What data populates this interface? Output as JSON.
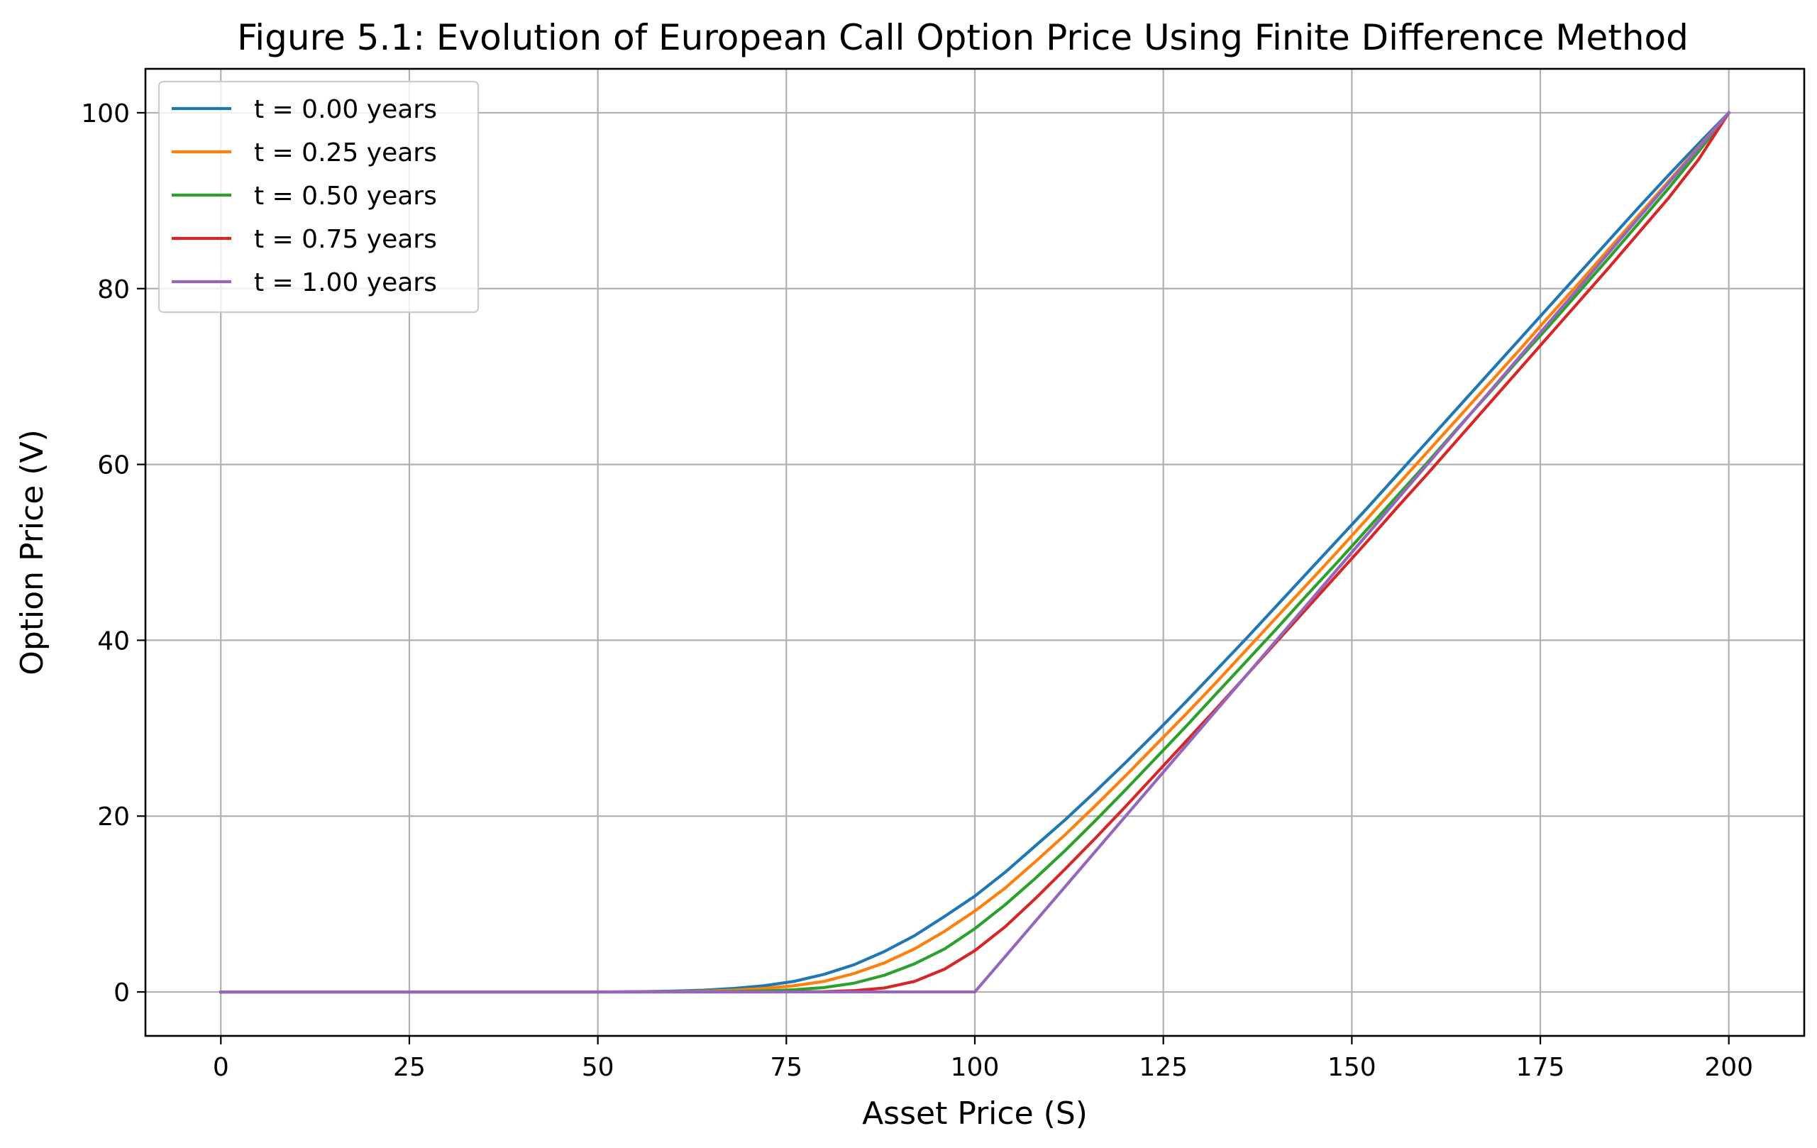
{
  "chart_data": {
    "type": "line",
    "title": "Figure 5.1: Evolution of European Call Option Price Using Finite Difference Method",
    "xlabel": "Asset Price (S)",
    "ylabel": "Option Price (V)",
    "xlim": [
      -10,
      210
    ],
    "ylim": [
      -5,
      105
    ],
    "xticks": [
      0,
      25,
      50,
      75,
      100,
      125,
      150,
      175,
      200
    ],
    "xtick_labels": [
      "0",
      "25",
      "50",
      "75",
      "100",
      "125",
      "150",
      "175",
      "200"
    ],
    "yticks": [
      0,
      20,
      40,
      60,
      80,
      100
    ],
    "ytick_labels": [
      "0",
      "20",
      "40",
      "60",
      "80",
      "100"
    ],
    "grid": true,
    "legend_position": "upper-left",
    "x": [
      0,
      4,
      8,
      12,
      16,
      20,
      24,
      28,
      32,
      36,
      40,
      44,
      48,
      52,
      56,
      60,
      64,
      68,
      72,
      76,
      80,
      84,
      88,
      92,
      96,
      100,
      104,
      108,
      112,
      116,
      120,
      124,
      128,
      132,
      136,
      140,
      144,
      148,
      152,
      156,
      160,
      164,
      168,
      172,
      176,
      180,
      184,
      188,
      192,
      196,
      200
    ],
    "series": [
      {
        "name": "t = 0.00 years",
        "color": "#1f77b4",
        "values": [
          0,
          0,
          0,
          0,
          0,
          0,
          0,
          0,
          0,
          0,
          0,
          0,
          0,
          0.01,
          0.04,
          0.1,
          0.2,
          0.4,
          0.7,
          1.2,
          2.0,
          3.1,
          4.6,
          6.4,
          8.6,
          10.9,
          13.6,
          16.6,
          19.6,
          22.8,
          26.1,
          29.5,
          33.0,
          36.6,
          40.2,
          43.9,
          47.6,
          51.3,
          55.0,
          58.8,
          62.6,
          66.4,
          70.2,
          74.0,
          77.8,
          81.6,
          85.4,
          89.2,
          92.9,
          96.5,
          100
        ]
      },
      {
        "name": "t = 0.25 years",
        "color": "#ff7f0e",
        "values": [
          0,
          0,
          0,
          0,
          0,
          0,
          0,
          0,
          0,
          0,
          0,
          0,
          0,
          0,
          0.01,
          0.03,
          0.08,
          0.2,
          0.4,
          0.7,
          1.2,
          2.1,
          3.3,
          4.9,
          6.9,
          9.2,
          11.8,
          14.8,
          17.9,
          21.2,
          24.6,
          28.1,
          31.6,
          35.2,
          38.9,
          42.6,
          46.3,
          50.0,
          53.8,
          57.6,
          61.4,
          65.2,
          69.0,
          72.8,
          76.7,
          80.5,
          84.4,
          88.3,
          92.2,
          96.1,
          100
        ]
      },
      {
        "name": "t = 0.50 years",
        "color": "#2ca02c",
        "values": [
          0,
          0,
          0,
          0,
          0,
          0,
          0,
          0,
          0,
          0,
          0,
          0,
          0,
          0,
          0,
          0.01,
          0.02,
          0.05,
          0.12,
          0.25,
          0.5,
          1.0,
          1.9,
          3.2,
          4.9,
          7.2,
          9.9,
          12.9,
          16.1,
          19.5,
          23.0,
          26.6,
          30.2,
          33.9,
          37.6,
          41.3,
          45.1,
          48.8,
          52.6,
          56.4,
          60.2,
          64.1,
          67.9,
          71.8,
          75.6,
          79.5,
          83.4,
          87.4,
          91.4,
          95.6,
          100
        ]
      },
      {
        "name": "t = 0.75 years",
        "color": "#d62728",
        "values": [
          0,
          0,
          0,
          0,
          0,
          0,
          0,
          0,
          0,
          0,
          0,
          0,
          0,
          0,
          0,
          0,
          0,
          0,
          0,
          0.01,
          0.04,
          0.15,
          0.45,
          1.2,
          2.6,
          4.7,
          7.4,
          10.6,
          14.0,
          17.5,
          21.1,
          24.8,
          28.5,
          32.2,
          36.0,
          39.8,
          43.6,
          47.4,
          51.2,
          55.1,
          58.9,
          62.8,
          66.7,
          70.6,
          74.5,
          78.4,
          82.3,
          86.3,
          90.3,
          94.7,
          100
        ]
      },
      {
        "name": "t = 1.00 years",
        "color": "#9467bd",
        "values": [
          0,
          0,
          0,
          0,
          0,
          0,
          0,
          0,
          0,
          0,
          0,
          0,
          0,
          0,
          0,
          0,
          0,
          0,
          0,
          0,
          0,
          0,
          0,
          0,
          0,
          0,
          4,
          8,
          12,
          16,
          20,
          24,
          28,
          32,
          36,
          40,
          44,
          48,
          52,
          56,
          60,
          64,
          68,
          72,
          76,
          80,
          84,
          88,
          92,
          96,
          100
        ]
      }
    ]
  }
}
